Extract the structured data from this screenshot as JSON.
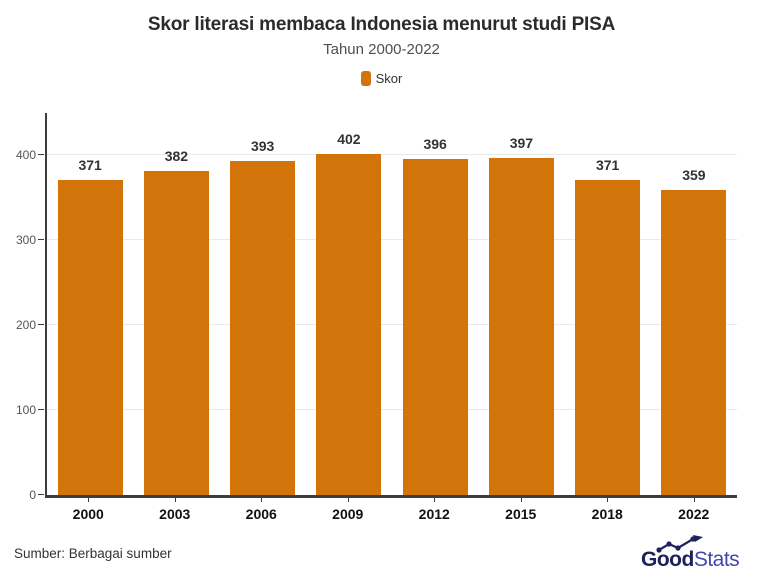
{
  "chart": {
    "title": "Skor literasi membaca Indonesia menurut studi PISA",
    "subtitle": "Tahun 2000-2022",
    "legend_label": "Skor"
  },
  "chart_data": {
    "type": "bar",
    "categories": [
      "2000",
      "2003",
      "2006",
      "2009",
      "2012",
      "2015",
      "2018",
      "2022"
    ],
    "values": [
      371,
      382,
      393,
      402,
      396,
      397,
      371,
      359
    ],
    "series_name": "Skor",
    "title": "Skor literasi membaca Indonesia menurut studi PISA",
    "subtitle": "Tahun 2000-2022",
    "xlabel": "",
    "ylabel": "",
    "ylim": [
      0,
      450
    ],
    "yticks": [
      0,
      100,
      200,
      300,
      400
    ],
    "grid": true,
    "legend_position": "top"
  },
  "footer": {
    "source": "Sumber: Berbagai sumber",
    "logo": {
      "part1": "Good",
      "part2": "Stats"
    }
  },
  "colors": {
    "bar": "#D2740A",
    "title": "#2b2b2b",
    "subtitle": "#4f4f4f",
    "axis": "#3d3d3d",
    "grid": "#e9e9e9",
    "tick_label": "#555555",
    "value_label": "#333333",
    "logo_dark": "#20205f",
    "logo_light": "#4545ad"
  }
}
